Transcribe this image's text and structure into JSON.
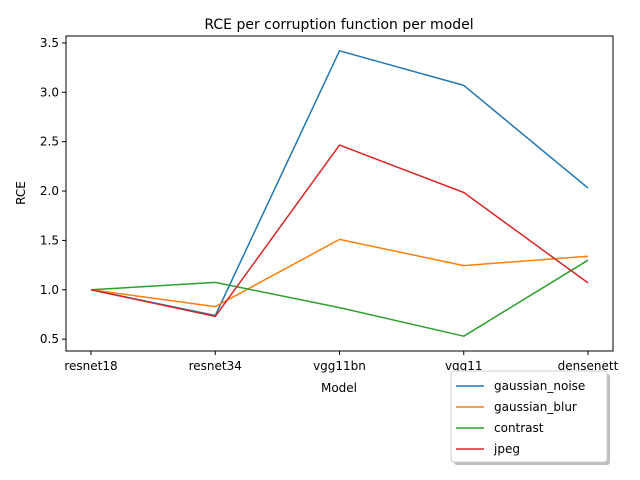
{
  "chart_data": {
    "type": "line",
    "title": "RCE per corruption function per model",
    "xlabel": "Model",
    "ylabel": "RCE",
    "categories": [
      "resnet18",
      "resnet34",
      "vgg11bn",
      "vgg11",
      "densenett"
    ],
    "ylim": [
      0.38,
      3.57
    ],
    "yticks": [
      "0.5",
      "1.0",
      "1.5",
      "2.0",
      "2.5",
      "3.0",
      "3.5"
    ],
    "grid": false,
    "legend_position": "bottom-right, outside plot",
    "series": [
      {
        "name": "gaussian_noise",
        "color": "#1f77b4",
        "values": [
          1.0,
          0.74,
          3.42,
          3.07,
          2.03
        ]
      },
      {
        "name": "gaussian_blur",
        "color": "#ff7f0e",
        "values": [
          1.0,
          0.83,
          1.51,
          1.245,
          1.34
        ]
      },
      {
        "name": "contrast",
        "color": "#2ca02c",
        "values": [
          1.0,
          1.075,
          0.82,
          0.53,
          1.3
        ]
      },
      {
        "name": "jpeg",
        "color": "#d62728",
        "values": [
          1.0,
          0.73,
          2.465,
          1.985,
          1.07
        ]
      }
    ]
  }
}
